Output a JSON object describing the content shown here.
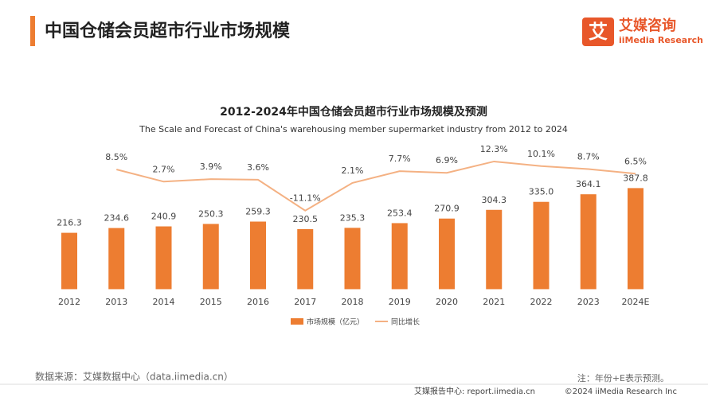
{
  "header": {
    "title": "中国仓储会员超市行业市场规模",
    "logo_mark": "艾",
    "logo_name": "艾媒咨询",
    "logo_sub": "iiMedia Research"
  },
  "chart_data": {
    "type": "bar-line",
    "title": "2012-2024年中国仓储会员超市行业市场规模及预测",
    "subtitle": "The Scale and Forecast of China's warehousing member supermarket industry from 2012 to 2024",
    "categories": [
      "2012",
      "2013",
      "2014",
      "2015",
      "2016",
      "2017",
      "2018",
      "2019",
      "2020",
      "2021",
      "2022",
      "2023",
      "2024E"
    ],
    "ylim": [
      -20,
      560
    ],
    "y2lim": [
      -51,
      21
    ],
    "series": [
      {
        "name": "市场规模（亿元）",
        "type": "bar",
        "color": "#ed7d31",
        "values": [
          216.3,
          234.6,
          240.9,
          250.3,
          259.3,
          230.5,
          235.3,
          253.4,
          270.9,
          304.3,
          335.0,
          364.1,
          387.8
        ],
        "value_labels": [
          "216.3",
          "234.6",
          "240.9",
          "250.3",
          "259.3",
          "230.5",
          "235.3",
          "253.4",
          "270.9",
          "304.3",
          "335.0",
          "364.1",
          "387.8"
        ]
      },
      {
        "name": "同比增长",
        "type": "line",
        "axis": "y2",
        "color": "#f4b183",
        "values": [
          null,
          8.5,
          2.7,
          3.9,
          3.6,
          -11.1,
          2.1,
          7.7,
          6.9,
          12.3,
          10.1,
          8.7,
          6.5
        ],
        "value_labels": [
          null,
          "8.5%",
          "2.7%",
          "3.9%",
          "3.6%",
          "-11.1%",
          "2.1%",
          "7.7%",
          "6.9%",
          "12.3%",
          "10.1%",
          "8.7%",
          "6.5%"
        ]
      }
    ]
  },
  "footer": {
    "source": "数据来源：艾媒数据中心（data.iimedia.cn）",
    "note": "注：年份+E表示预测。",
    "report": "艾媒报告中心: report.iimedia.cn",
    "copyright": "©2024  iiMedia Research  Inc"
  }
}
